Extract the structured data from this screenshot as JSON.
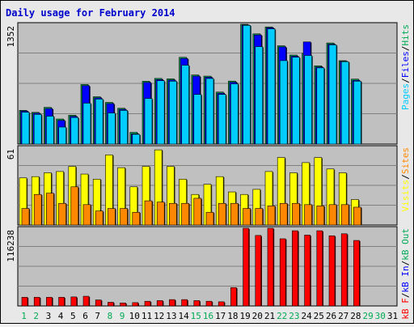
{
  "chart_data": {
    "title": "Daily usage for February 2014",
    "type": "bar",
    "categories": [
      "1",
      "2",
      "3",
      "4",
      "5",
      "6",
      "7",
      "8",
      "9",
      "10",
      "11",
      "12",
      "13",
      "14",
      "15",
      "16",
      "17",
      "18",
      "19",
      "20",
      "21",
      "22",
      "23",
      "24",
      "25",
      "26",
      "27",
      "28",
      "29",
      "30",
      "31"
    ],
    "weekend_days": [
      "1",
      "2",
      "8",
      "9",
      "15",
      "16",
      "22",
      "23",
      "29",
      "30"
    ],
    "panels": [
      {
        "ymax_label": "1352",
        "ymax": 1352,
        "right_label": [
          {
            "text": "Pages",
            "color": "#00ccff"
          },
          {
            "text": "/",
            "color": "#000000"
          },
          {
            "text": "Files",
            "color": "#0000ff"
          },
          {
            "text": "/",
            "color": "#000000"
          },
          {
            "text": "Hits",
            "color": "#00aa55"
          }
        ],
        "series": [
          {
            "name": "Hits",
            "color": "#00aa55",
            "values": [
              381,
              358,
              414,
              283,
              325,
              672,
              534,
              470,
              404,
              132,
              709,
              741,
              736,
              979,
              780,
              767,
              587,
              711,
              1352,
              1244,
              1322,
              1109,
              1005,
              1023,
              883,
              1141,
              941,
              733
            ]
          },
          {
            "name": "Files",
            "color": "#0000ff",
            "values": [
              373,
              348,
              401,
              268,
              313,
              659,
              522,
              457,
              392,
              116,
              696,
              728,
              723,
              966,
              767,
              754,
              574,
              698,
              1345,
              1232,
              1313,
              1097,
              993,
              1153,
              870,
              1128,
              934,
              720
            ]
          },
          {
            "name": "Pages",
            "color": "#00ccff",
            "values": [
              360,
              335,
              315,
              192,
              300,
              462,
              508,
              350,
              380,
              110,
              515,
              715,
              710,
              890,
              560,
              740,
              560,
              680,
              1340,
              1100,
              1300,
              942,
              980,
              1000,
              860,
              1120,
              930,
              710
            ]
          }
        ]
      },
      {
        "ymax_label": "61",
        "ymax": 61,
        "right_label": [
          {
            "text": "Visits",
            "color": "#ffff00"
          },
          {
            "text": "/",
            "color": "#000000"
          },
          {
            "text": "Sites",
            "color": "#ff8800"
          }
        ],
        "series": [
          {
            "name": "Visits",
            "color": "#ffff00",
            "values": [
              37,
              38,
              41,
              42,
              46,
              40,
              36,
              55,
              45,
              30,
              46,
              59,
              46,
              36,
              24,
              32,
              38,
              26,
              24,
              28,
              42,
              53,
              41,
              49,
              53,
              44,
              41,
              20
            ]
          },
          {
            "name": "Sites",
            "color": "#ff8800",
            "values": [
              13,
              24,
              25,
              17,
              30,
              16,
              11,
              13,
              13,
              10,
              19,
              18,
              17,
              17,
              21,
              10,
              17,
              17,
              13,
              13,
              15,
              17,
              17,
              16,
              15,
              16,
              16,
              14
            ]
          }
        ]
      },
      {
        "ymax_label": "116238",
        "ymax": 116238,
        "right_label": [
          {
            "text": "kB F",
            "color": "#ff0000"
          },
          {
            "text": "/",
            "color": "#000000"
          },
          {
            "text": "kB In",
            "color": "#0000ff"
          },
          {
            "text": "/",
            "color": "#000000"
          },
          {
            "text": "kB Out",
            "color": "#00aa55"
          }
        ],
        "series": [
          {
            "name": "kB F",
            "color": "#ff0000",
            "values": [
              13000,
              13000,
              13000,
              13000,
              13500,
              14500,
              9000,
              5500,
              4500,
              5000,
              7000,
              8000,
              9500,
              9500,
              8000,
              7000,
              6200,
              27500,
              116238,
              105500,
              116238,
              100500,
              112500,
              106000,
              112500,
              105000,
              108000,
              98000
            ]
          }
        ]
      }
    ]
  }
}
